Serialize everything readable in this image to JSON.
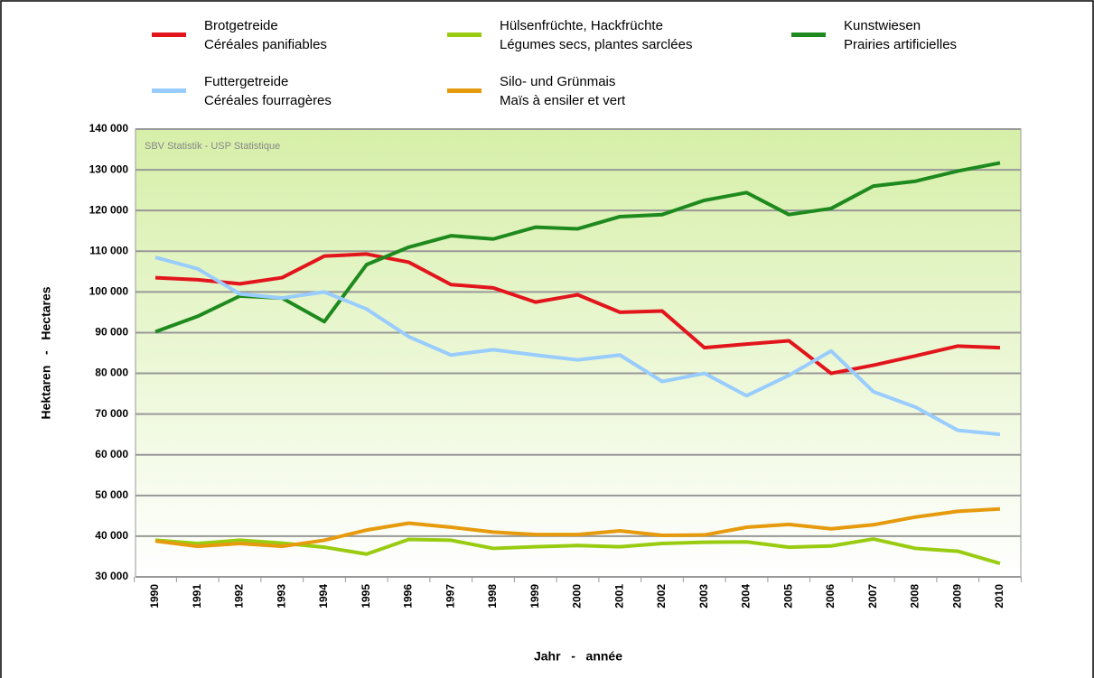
{
  "chart_data": {
    "type": "line",
    "annotation": "SBV Statistik - USP Statistique",
    "x_label": "Jahr   -   année",
    "y_label": "Hektaren   -   Hectares",
    "categories": [
      "1990",
      "1991",
      "1992",
      "1993",
      "1994",
      "1995",
      "1996",
      "1997",
      "1998",
      "1999",
      "2000",
      "2001",
      "2002",
      "2003",
      "2004",
      "2005",
      "2006",
      "2007",
      "2008",
      "2009",
      "2010"
    ],
    "ylim": [
      30000,
      140000
    ],
    "yticks": [
      {
        "value": 30000,
        "label": "30 000"
      },
      {
        "value": 40000,
        "label": "40 000"
      },
      {
        "value": 50000,
        "label": "50 000"
      },
      {
        "value": 60000,
        "label": "60 000"
      },
      {
        "value": 70000,
        "label": "70 000"
      },
      {
        "value": 80000,
        "label": "80 000"
      },
      {
        "value": 90000,
        "label": "90 000"
      },
      {
        "value": 100000,
        "label": "100 000"
      },
      {
        "value": 110000,
        "label": "110 000"
      },
      {
        "value": 120000,
        "label": "120 000"
      },
      {
        "value": 130000,
        "label": "130 000"
      },
      {
        "value": 140000,
        "label": "140 000"
      }
    ],
    "grid": true,
    "series": [
      {
        "name": "Brotgetreide\nCéréales panifiables",
        "color": "#e2151c",
        "values": [
          103500,
          103000,
          102000,
          103500,
          108800,
          109300,
          107300,
          101800,
          101000,
          97500,
          99300,
          95000,
          95300,
          86300,
          87200,
          88000,
          80000,
          82000,
          84300,
          86700,
          86300
        ]
      },
      {
        "name": "Hülsenfrüchte, Hackfrüchte\nLégumes secs, plantes sarclées",
        "color": "#99cc11",
        "values": [
          39000,
          38200,
          39000,
          38300,
          37300,
          35600,
          39200,
          39000,
          37000,
          37400,
          37700,
          37400,
          38200,
          38500,
          38600,
          37300,
          37600,
          39300,
          37000,
          36300,
          33300
        ]
      },
      {
        "name": "Kunstwiesen\nPrairies artificielles",
        "color": "#1e8a1e",
        "values": [
          90200,
          94000,
          99000,
          98500,
          92700,
          106700,
          111000,
          113800,
          113000,
          115900,
          115500,
          118500,
          119000,
          122500,
          124400,
          119000,
          120500,
          126000,
          127200,
          129700,
          131700
        ]
      },
      {
        "name": "Futtergetreide\nCéréales fourragères",
        "color": "#99ccff",
        "values": [
          108500,
          105700,
          99500,
          98500,
          100000,
          95800,
          89000,
          84500,
          85800,
          84500,
          83300,
          84500,
          78000,
          80000,
          74500,
          79500,
          85500,
          75500,
          71700,
          66000,
          65000
        ]
      },
      {
        "name": "Silo- und Grünmais\nMaïs à ensiler et vert",
        "color": "#e69a0e",
        "values": [
          38800,
          37500,
          38200,
          37500,
          39000,
          41500,
          43200,
          42200,
          41000,
          40400,
          40400,
          41300,
          40200,
          40300,
          42200,
          42900,
          41800,
          42800,
          44700,
          46100,
          46700
        ]
      }
    ]
  }
}
